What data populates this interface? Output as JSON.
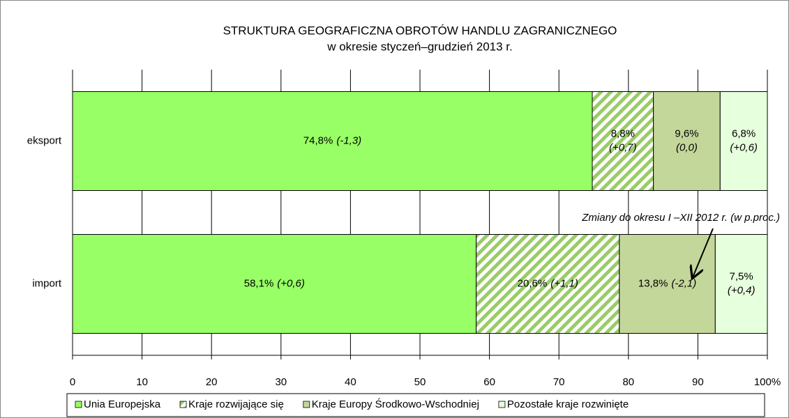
{
  "chart_data": {
    "type": "stacked-barh",
    "title": "STRUKTURA GEOGRAFICZNA OBROTÓW HANDLU ZAGRANICZNEGO",
    "subtitle": "w okresie styczeń–grudzień 2013 r.",
    "annotation": "Zmiany do okresu I –XII 2012 r. (w p.proc.)",
    "categories": [
      "eksport",
      "import"
    ],
    "series": [
      {
        "name": "Unia Europejska",
        "color": "#99ff66",
        "pattern": "solid",
        "values": [
          74.8,
          58.1
        ],
        "value_labels": [
          "74,8%",
          "58,1%"
        ],
        "change_labels": [
          "(-1,3)",
          "(+0,6)"
        ]
      },
      {
        "name": "Kraje rozwijające się",
        "color": "#99cc66",
        "pattern": "hatch",
        "values": [
          8.8,
          20.6
        ],
        "value_labels": [
          "8,8%",
          "20,6%"
        ],
        "change_labels": [
          "(+0,7)",
          "(+1,1)"
        ]
      },
      {
        "name": "Kraje Europy Środkowo-Wschodniej",
        "color": "#c4d79b",
        "pattern": "solid",
        "values": [
          9.6,
          13.8
        ],
        "value_labels": [
          "9,6%",
          "13,8%"
        ],
        "change_labels": [
          "(0,0)",
          "(-2,1)"
        ]
      },
      {
        "name": "Pozostałe kraje rozwinięte",
        "color": "#e6ffdc",
        "pattern": "solid",
        "values": [
          6.8,
          7.5
        ],
        "value_labels": [
          "6,8%",
          "7,5%"
        ],
        "change_labels": [
          "(+0,6)",
          "(+0,4)"
        ]
      }
    ],
    "xlim": [
      0,
      100
    ],
    "xticks": [
      0,
      10,
      20,
      30,
      40,
      50,
      60,
      70,
      80,
      90,
      {
        "value": 100,
        "label": "100%"
      }
    ],
    "grid": true,
    "legend": "bottom"
  }
}
